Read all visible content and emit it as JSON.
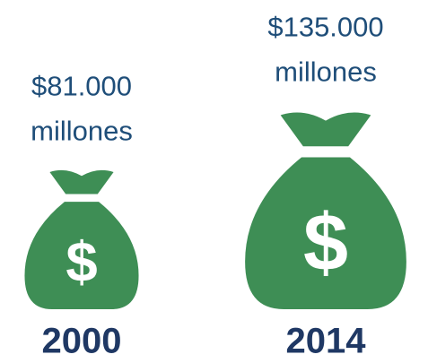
{
  "chart_data": {
    "type": "pictogram",
    "categories": [
      "2000",
      "2014"
    ],
    "values": [
      81000,
      135000
    ],
    "value_labels": [
      "$81.000",
      "$135.000"
    ],
    "unit": "millones",
    "symbol": "$",
    "color": "#3e8e55"
  }
}
